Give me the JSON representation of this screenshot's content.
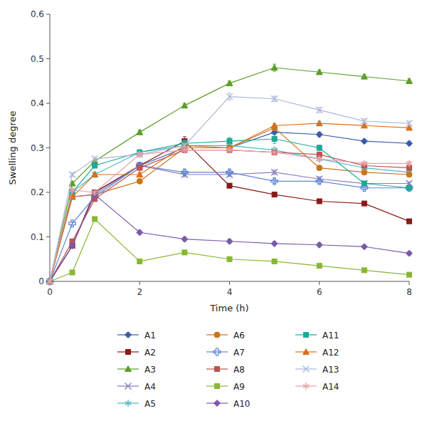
{
  "chart_data": {
    "type": "line",
    "xlabel": "Time (h)",
    "ylabel": "Swelling degree",
    "x": [
      0,
      0.5,
      1,
      2,
      3,
      4,
      5,
      6,
      7,
      8
    ],
    "xlim": [
      0,
      8
    ],
    "ylim": [
      0,
      0.6
    ],
    "xticks": [
      0,
      2,
      4,
      6,
      8
    ],
    "yticks": [
      0,
      0.1,
      0.2,
      0.3,
      0.4,
      0.5,
      0.6
    ],
    "grid": false,
    "legend": "bottom",
    "series": [
      {
        "name": "A1",
        "color": "#3A5AA8",
        "marker": "diamond",
        "values": [
          0,
          0.08,
          0.2,
          0.26,
          0.3,
          0.3,
          0.335,
          0.33,
          0.315,
          0.31
        ],
        "errors": [
          0,
          0.004,
          0.004,
          0.005,
          0.006,
          0.005,
          0.005,
          0.005,
          0.004,
          0.004
        ]
      },
      {
        "name": "A2",
        "color": "#8B1A1A",
        "marker": "square",
        "values": [
          0,
          0.08,
          0.2,
          0.26,
          0.315,
          0.215,
          0.195,
          0.18,
          0.175,
          0.135
        ],
        "errors": [
          0,
          0.004,
          0.005,
          0.006,
          0.01,
          0.005,
          0.005,
          0.004,
          0.004,
          0.005
        ]
      },
      {
        "name": "A3",
        "color": "#5C9E28",
        "marker": "triangle",
        "values": [
          0,
          0.22,
          0.27,
          0.335,
          0.395,
          0.445,
          0.48,
          0.47,
          0.46,
          0.45
        ],
        "errors": [
          0,
          0.004,
          0.005,
          0.005,
          0.005,
          0.005,
          0.008,
          0.005,
          0.005,
          0.005
        ]
      },
      {
        "name": "A4",
        "color": "#8B7BB8",
        "marker": "x",
        "values": [
          0,
          0.19,
          0.195,
          0.26,
          0.24,
          0.24,
          0.245,
          0.23,
          0.22,
          0.22
        ],
        "errors": [
          0,
          0.004,
          0.004,
          0.005,
          0.005,
          0.005,
          0.005,
          0.005,
          0.004,
          0.004
        ]
      },
      {
        "name": "A5",
        "color": "#4BB8C8",
        "marker": "asterisk",
        "values": [
          0,
          0.2,
          0.24,
          0.29,
          0.305,
          0.305,
          0.295,
          0.275,
          0.255,
          0.245
        ],
        "errors": [
          0,
          0.004,
          0.005,
          0.005,
          0.005,
          0.005,
          0.005,
          0.005,
          0.004,
          0.004
        ]
      },
      {
        "name": "A6",
        "color": "#C8761A",
        "marker": "circle",
        "values": [
          0,
          0.19,
          0.195,
          0.225,
          0.3,
          0.3,
          0.345,
          0.255,
          0.245,
          0.24
        ],
        "errors": [
          0,
          0.004,
          0.004,
          0.005,
          0.005,
          0.005,
          0.005,
          0.005,
          0.004,
          0.004
        ]
      },
      {
        "name": "A7",
        "color": "#6088D8",
        "marker": "plus",
        "values": [
          0,
          0.13,
          0.19,
          0.26,
          0.245,
          0.245,
          0.225,
          0.225,
          0.21,
          0.21
        ],
        "errors": [
          0,
          0.004,
          0.005,
          0.005,
          0.005,
          0.005,
          0.005,
          0.005,
          0.004,
          0.004
        ]
      },
      {
        "name": "A8",
        "color": "#C05050",
        "marker": "square",
        "values": [
          0,
          0.09,
          0.185,
          0.255,
          0.295,
          0.295,
          0.29,
          0.285,
          0.26,
          0.255
        ],
        "errors": [
          0,
          0.004,
          0.005,
          0.005,
          0.006,
          0.005,
          0.005,
          0.005,
          0.004,
          0.004
        ]
      },
      {
        "name": "A9",
        "color": "#88B830",
        "marker": "square",
        "values": [
          0,
          0.02,
          0.14,
          0.045,
          0.065,
          0.05,
          0.045,
          0.035,
          0.025,
          0.015
        ],
        "errors": [
          0,
          0.004,
          0.005,
          0.005,
          0.005,
          0.005,
          0.005,
          0.004,
          0.004,
          0.004
        ]
      },
      {
        "name": "A10",
        "color": "#7A5AA8",
        "marker": "diamond",
        "values": [
          0,
          0.08,
          0.195,
          0.11,
          0.095,
          0.09,
          0.085,
          0.082,
          0.078,
          0.063
        ],
        "errors": [
          0,
          0.004,
          0.005,
          0.005,
          0.005,
          0.005,
          0.005,
          0.005,
          0.004,
          0.004
        ]
      },
      {
        "name": "A11",
        "color": "#20A898",
        "marker": "square",
        "values": [
          0,
          0.2,
          0.26,
          0.29,
          0.31,
          0.315,
          0.32,
          0.3,
          0.22,
          0.21
        ],
        "errors": [
          0,
          0.004,
          0.005,
          0.005,
          0.008,
          0.008,
          0.01,
          0.006,
          0.005,
          0.005
        ]
      },
      {
        "name": "A12",
        "color": "#D87020",
        "marker": "triangle",
        "values": [
          0,
          0.19,
          0.24,
          0.24,
          0.305,
          0.3,
          0.35,
          0.355,
          0.35,
          0.345
        ],
        "errors": [
          0,
          0.004,
          0.005,
          0.005,
          0.005,
          0.005,
          0.005,
          0.005,
          0.005,
          0.005
        ]
      },
      {
        "name": "A13",
        "color": "#A8B8D8",
        "marker": "x",
        "values": [
          0,
          0.24,
          0.275,
          0.285,
          0.305,
          0.415,
          0.41,
          0.385,
          0.36,
          0.355
        ],
        "errors": [
          0,
          0.004,
          0.005,
          0.005,
          0.005,
          0.008,
          0.006,
          0.006,
          0.005,
          0.005
        ]
      },
      {
        "name": "A14",
        "color": "#E8A0A8",
        "marker": "asterisk",
        "values": [
          0,
          0.205,
          0.2,
          0.285,
          0.295,
          0.295,
          0.29,
          0.275,
          0.265,
          0.265
        ],
        "errors": [
          0,
          0.004,
          0.005,
          0.005,
          0.005,
          0.005,
          0.005,
          0.005,
          0.004,
          0.004
        ]
      }
    ]
  }
}
